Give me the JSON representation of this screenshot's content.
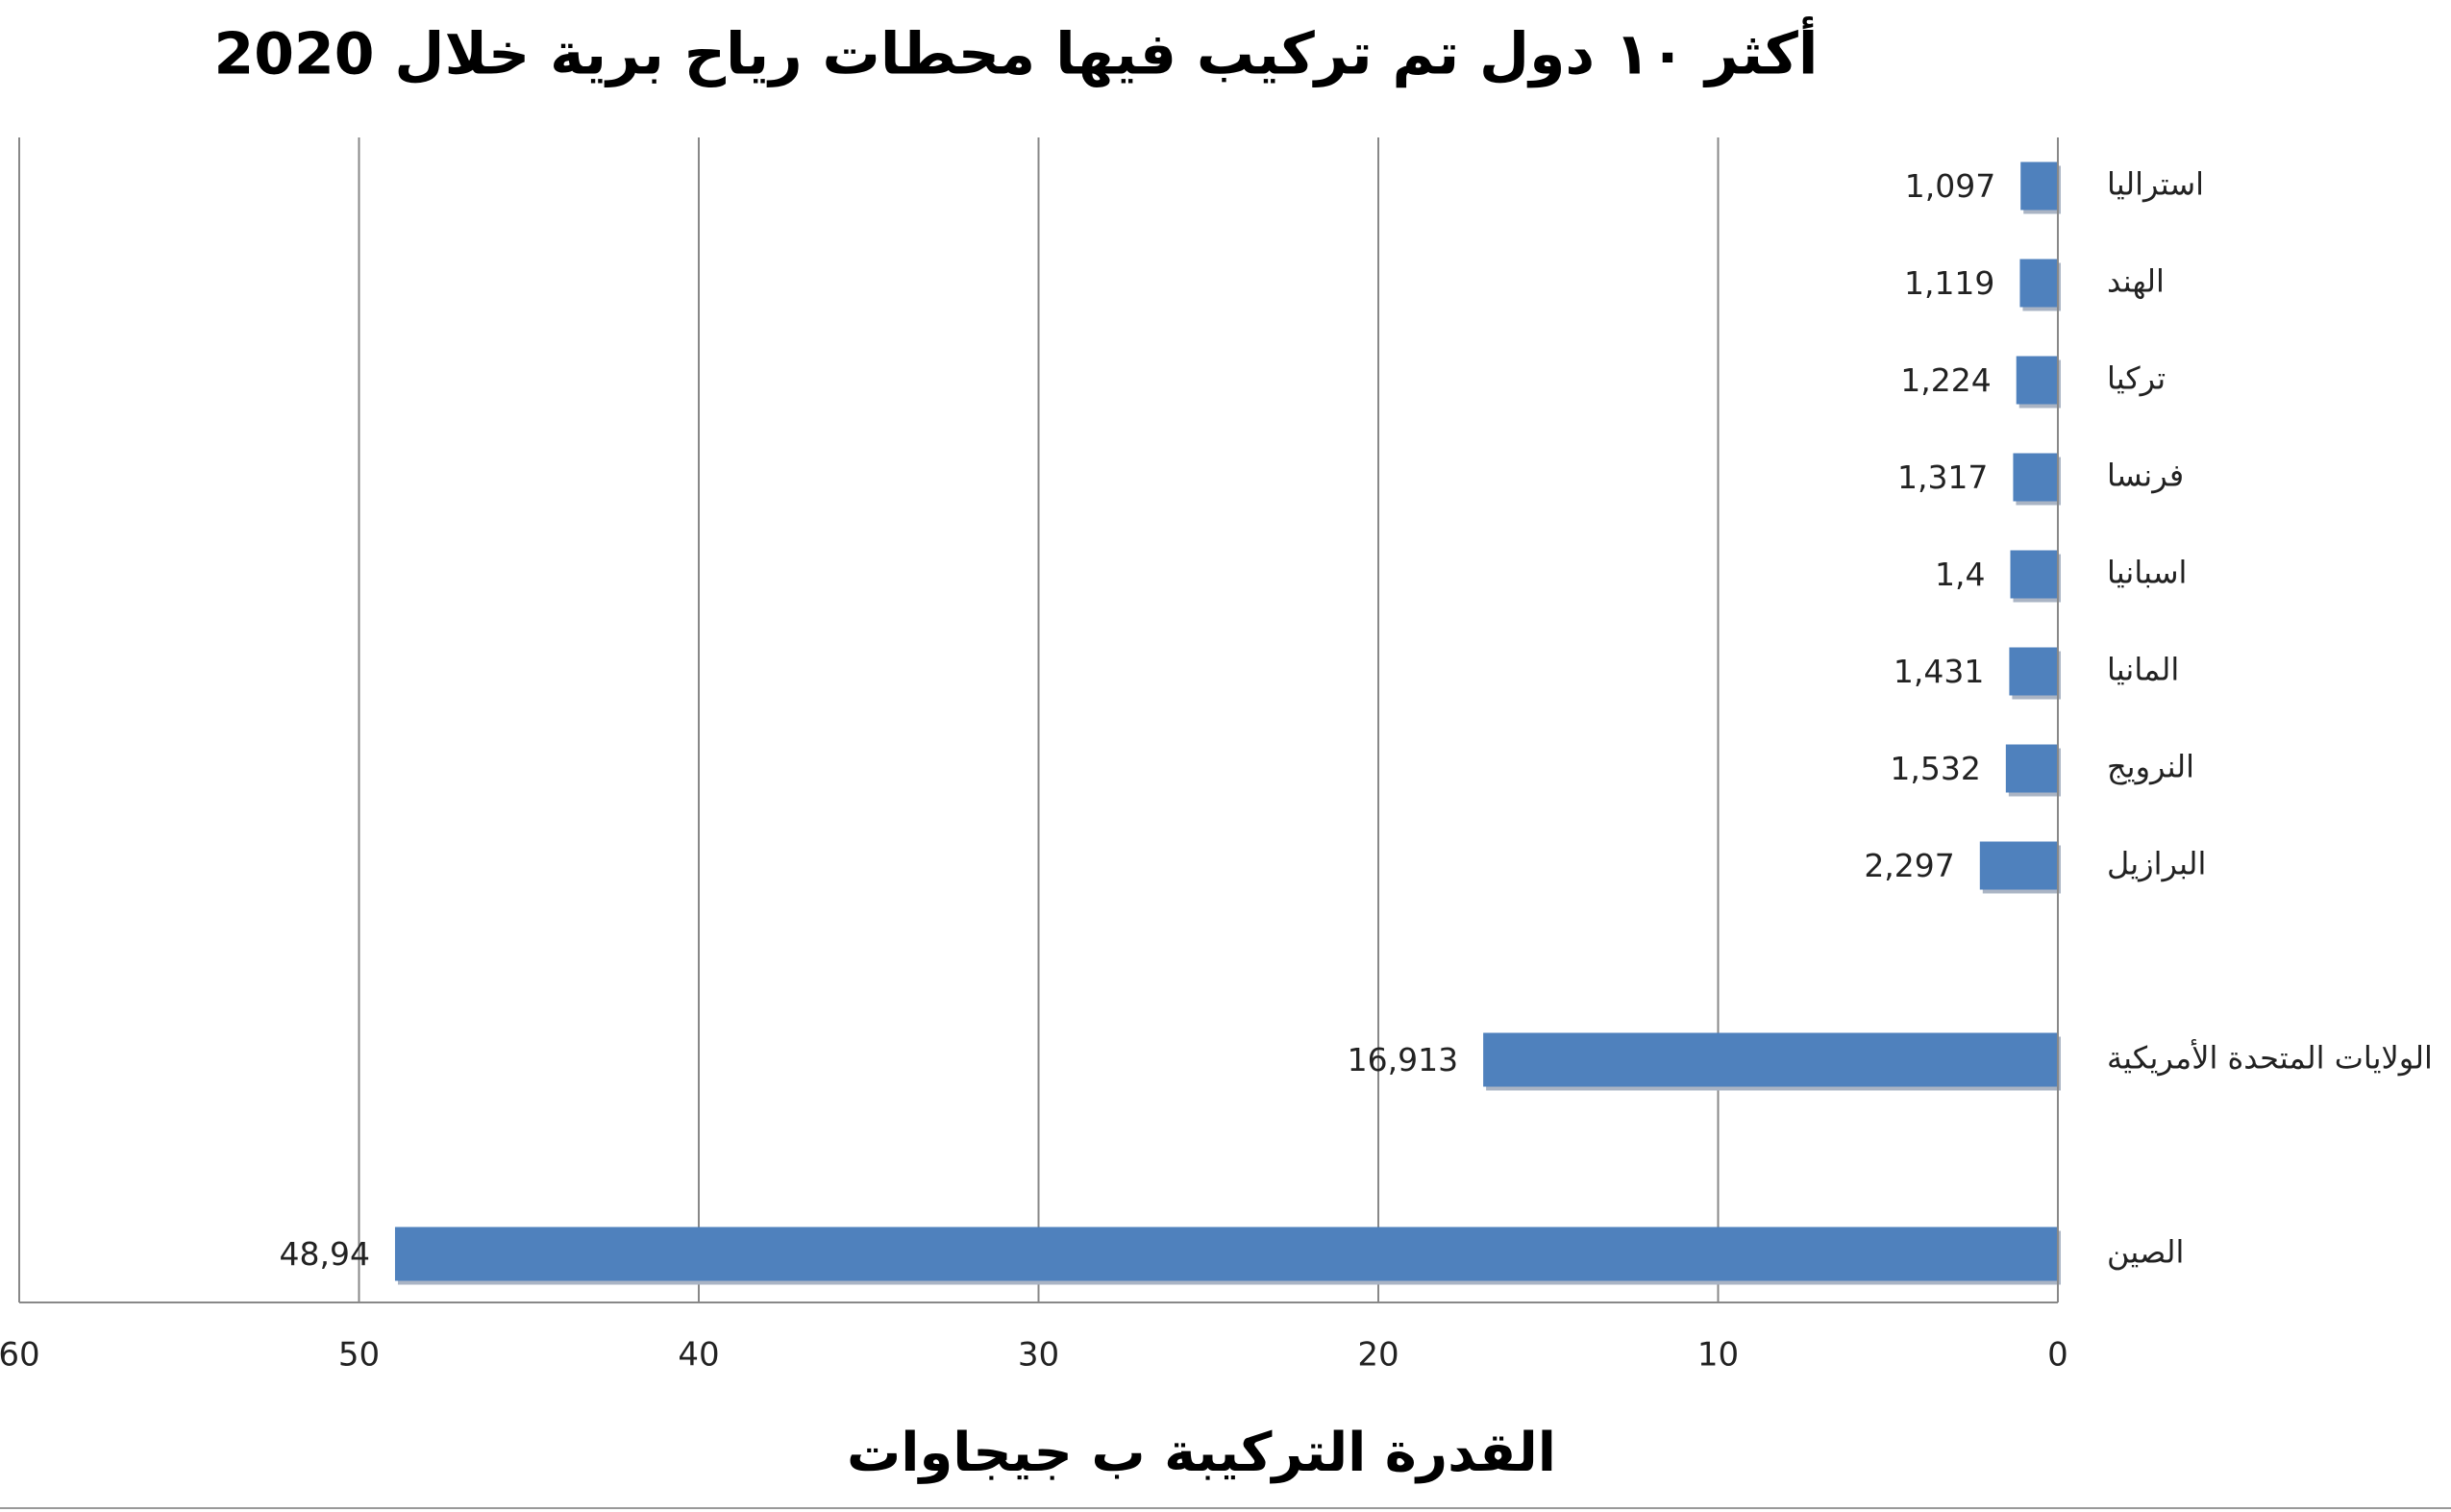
{
  "chart_data": {
    "type": "barh",
    "title": "أكثر ١٠ دول تم تركيب فيها محطات رياح برية خلال 2020",
    "x_label": "القدرة التركيبة ب جيجاوات",
    "categories": [
      "استراليا",
      "الهند",
      "تركيا",
      "فرنسا",
      "اسبانيا",
      "المانيا",
      "النرويج",
      "البرازيل",
      null,
      "الولايات المتحدة الأمريكية",
      null,
      "الصين"
    ],
    "values": [
      1.097,
      1.119,
      1.224,
      1.317,
      1.4,
      1.431,
      1.532,
      2.297,
      null,
      16.913,
      null,
      48.94
    ],
    "value_labels": [
      "1,097",
      "1,119",
      "1,224",
      "1,317",
      "1,4",
      "1,431",
      "1,532",
      "2,297",
      null,
      "16,913",
      null,
      "48,94"
    ],
    "color": "#4f81bd",
    "xlim": [
      0,
      60
    ],
    "xticks": [
      0,
      10,
      20,
      30,
      40,
      50,
      60
    ],
    "x_reversed": true,
    "grid": true
  }
}
